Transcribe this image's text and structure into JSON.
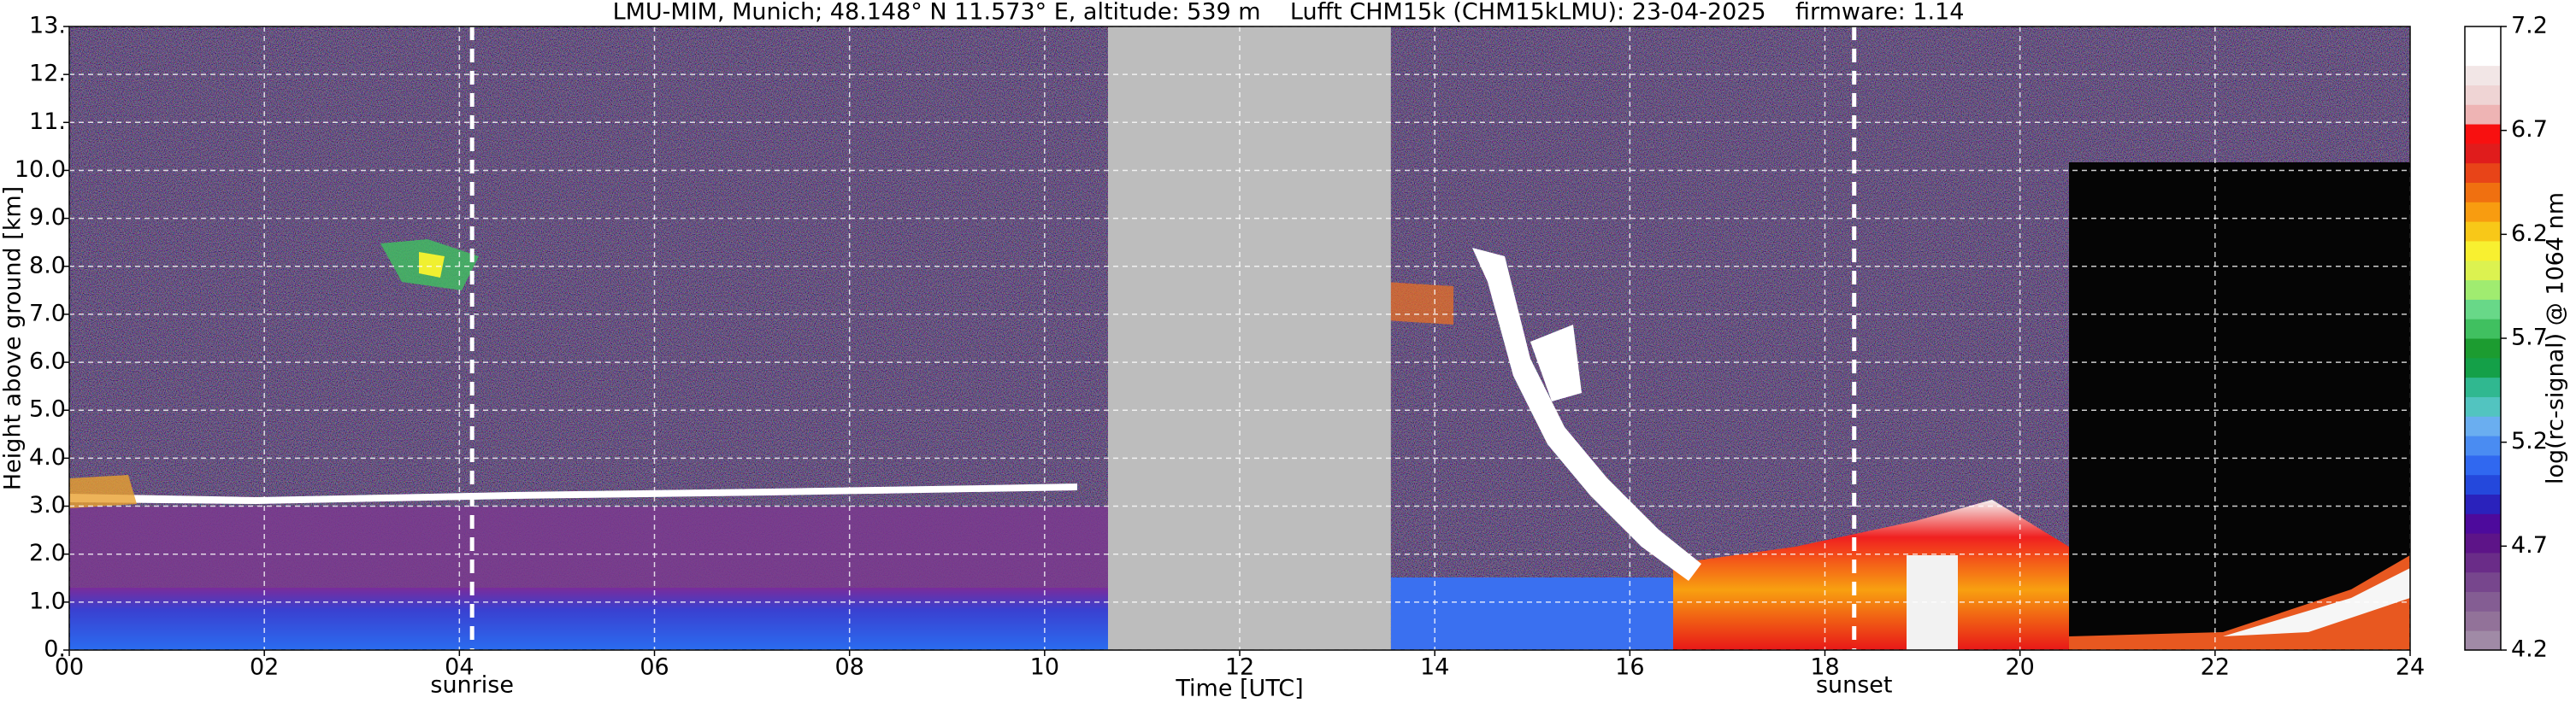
{
  "chart_data": {
    "type": "heatmap",
    "title": "LMU-MIM, Munich; 48.148° N 11.573° E, altitude: 539 m    Lufft CHM15k (CHM15kLMU): 23-04-2025    firmware: 1.14",
    "x_label": "Time [UTC]",
    "y_label": "Height above ground [km]",
    "xlim": [
      0,
      24
    ],
    "xticks": [
      {
        "value": 0,
        "label": "00"
      },
      {
        "value": 2,
        "label": "02"
      },
      {
        "value": 4,
        "label": "04"
      },
      {
        "value": 6,
        "label": "06"
      },
      {
        "value": 8,
        "label": "08"
      },
      10,
      12,
      14,
      16,
      18,
      20,
      22,
      24
    ],
    "ylim": [
      0,
      13
    ],
    "yticks": [
      {
        "value": 0,
        "label": "0."
      },
      {
        "value": 1,
        "label": "1.0"
      },
      {
        "value": 2,
        "label": "2.0"
      },
      {
        "value": 3,
        "label": "3.0"
      },
      {
        "value": 4,
        "label": "4.0"
      },
      {
        "value": 5,
        "label": "5.0"
      },
      {
        "value": 6,
        "label": "6.0"
      },
      {
        "value": 7,
        "label": "7.0"
      },
      {
        "value": 8,
        "label": "8.0"
      },
      {
        "value": 9,
        "label": "9.0"
      },
      {
        "value": 10,
        "label": "10.0"
      },
      {
        "value": 11,
        "label": "11."
      },
      {
        "value": 12,
        "label": "12."
      },
      {
        "value": 13,
        "label": "13."
      }
    ],
    "grid": true,
    "no_data": {
      "x": [
        10.65,
        13.55
      ],
      "color": "#bdbdbd"
    },
    "annotations": [
      {
        "text": "sunrise",
        "x": 4.13
      },
      {
        "text": "sunset",
        "x": 18.3
      }
    ],
    "colorbar": {
      "label": "log(rc-signal) @ 1064 nm",
      "lim": [
        4.2,
        7.2
      ],
      "ticks": [
        4.2,
        4.7,
        5.2,
        5.7,
        6.2,
        6.7,
        7.2
      ],
      "colors": [
        "#a08aa6",
        "#927299",
        "#845d93",
        "#77468d",
        "#6a2c88",
        "#5d1488",
        "#4d0a9c",
        "#2a22bc",
        "#2448dc",
        "#3068f0",
        "#4a8cf2",
        "#6aaef0",
        "#52c4c0",
        "#30b890",
        "#14a048",
        "#1c9c30",
        "#40c060",
        "#68d888",
        "#a0ec70",
        "#dcf250",
        "#f8f030",
        "#f8c818",
        "#f89c10",
        "#f07010",
        "#e84418",
        "#e01c1c",
        "#f81010",
        "#eeb4b4",
        "#efd4d4",
        "#f2e6e6",
        "#ffffff",
        "#ffffff"
      ]
    }
  }
}
